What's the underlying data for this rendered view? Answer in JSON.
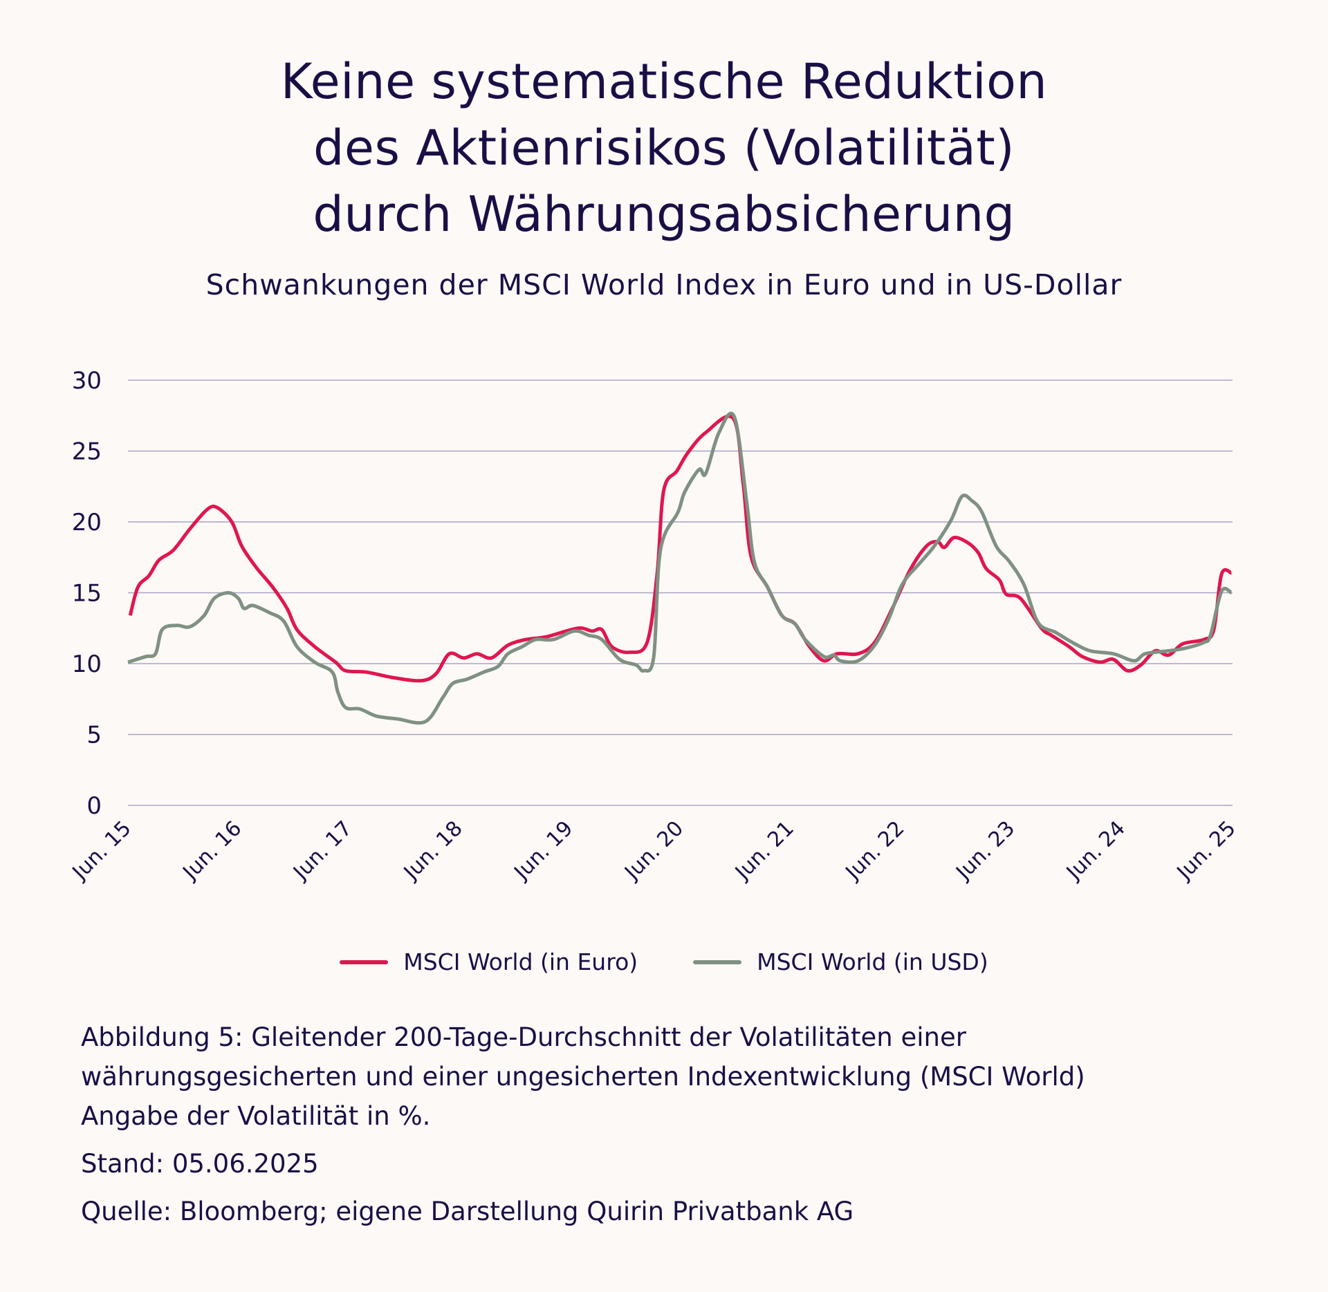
{
  "header": {
    "title_lines": [
      "Keine systematische Reduktion",
      "des Aktienrisikos (Volatilität)",
      "durch Währungsabsicherung"
    ],
    "subtitle": "Schwankungen der MSCI World Index in Euro und in US-Dollar"
  },
  "chart_data": {
    "type": "line",
    "title": "Schwankungen der MSCI World Index in Euro und in US-Dollar",
    "xlabel": "",
    "ylabel": "Volatilität in %",
    "x_unit": "years since Jun. 2015",
    "xlim": [
      0,
      10
    ],
    "ylim": [
      0,
      30
    ],
    "yticks": [
      0,
      5,
      10,
      15,
      20,
      25,
      30
    ],
    "ytick_labels": [
      "0",
      "5",
      "10",
      "15",
      "20",
      "25",
      "30"
    ],
    "xticks": [
      0,
      1,
      2,
      3,
      4,
      5,
      6,
      7,
      8,
      9,
      10
    ],
    "xtick_labels": [
      "Jun. 15",
      "Jun. 16",
      "Jun. 17",
      "Jun. 18",
      "Jun. 19",
      "Jun. 20",
      "Jun. 21",
      "Jun. 22",
      "Jun. 23",
      "Jun. 24",
      "Jun. 25"
    ],
    "grid": "horizontal",
    "legend_position": "bottom-center",
    "series": [
      {
        "name": "MSCI World (in Euro)",
        "color": "#e0164f",
        "points": [
          [
            0.02,
            13.4
          ],
          [
            0.09,
            15.4
          ],
          [
            0.19,
            16.2
          ],
          [
            0.28,
            17.3
          ],
          [
            0.41,
            18.0
          ],
          [
            0.56,
            19.5
          ],
          [
            0.72,
            20.9
          ],
          [
            0.81,
            21.0
          ],
          [
            0.94,
            20.0
          ],
          [
            1.03,
            18.3
          ],
          [
            1.16,
            16.8
          ],
          [
            1.31,
            15.4
          ],
          [
            1.44,
            13.9
          ],
          [
            1.53,
            12.4
          ],
          [
            1.69,
            11.2
          ],
          [
            1.88,
            10.1
          ],
          [
            1.97,
            9.5
          ],
          [
            2.16,
            9.4
          ],
          [
            2.41,
            9.0
          ],
          [
            2.66,
            8.8
          ],
          [
            2.79,
            9.3
          ],
          [
            2.91,
            10.7
          ],
          [
            3.04,
            10.4
          ],
          [
            3.16,
            10.7
          ],
          [
            3.29,
            10.4
          ],
          [
            3.44,
            11.3
          ],
          [
            3.6,
            11.7
          ],
          [
            3.79,
            11.9
          ],
          [
            4.07,
            12.5
          ],
          [
            4.2,
            12.3
          ],
          [
            4.29,
            12.4
          ],
          [
            4.38,
            11.2
          ],
          [
            4.54,
            10.8
          ],
          [
            4.7,
            11.5
          ],
          [
            4.79,
            16.3
          ],
          [
            4.85,
            22.2
          ],
          [
            4.97,
            23.6
          ],
          [
            5.07,
            24.9
          ],
          [
            5.23,
            26.3
          ],
          [
            5.48,
            27.3
          ],
          [
            5.57,
            22.7
          ],
          [
            5.64,
            17.6
          ],
          [
            5.79,
            15.4
          ],
          [
            5.92,
            13.4
          ],
          [
            6.04,
            12.8
          ],
          [
            6.17,
            11.2
          ],
          [
            6.3,
            10.2
          ],
          [
            6.42,
            10.7
          ],
          [
            6.61,
            10.7
          ],
          [
            6.76,
            11.5
          ],
          [
            6.92,
            13.9
          ],
          [
            7.08,
            16.6
          ],
          [
            7.23,
            18.3
          ],
          [
            7.33,
            18.6
          ],
          [
            7.39,
            18.2
          ],
          [
            7.48,
            18.9
          ],
          [
            7.61,
            18.5
          ],
          [
            7.7,
            17.8
          ],
          [
            7.77,
            16.7
          ],
          [
            7.89,
            15.9
          ],
          [
            7.95,
            14.9
          ],
          [
            8.08,
            14.6
          ],
          [
            8.27,
            12.5
          ],
          [
            8.36,
            12.0
          ],
          [
            8.52,
            11.2
          ],
          [
            8.64,
            10.5
          ],
          [
            8.8,
            10.1
          ],
          [
            8.92,
            10.3
          ],
          [
            9.05,
            9.5
          ],
          [
            9.17,
            9.9
          ],
          [
            9.3,
            10.9
          ],
          [
            9.42,
            10.6
          ],
          [
            9.55,
            11.4
          ],
          [
            9.74,
            11.7
          ],
          [
            9.83,
            12.4
          ],
          [
            9.9,
            16.3
          ],
          [
            9.99,
            16.4
          ]
        ]
      },
      {
        "name": "MSCI World (in USD)",
        "color": "#7f9182",
        "points": [
          [
            0.0,
            10.1
          ],
          [
            0.16,
            10.5
          ],
          [
            0.25,
            10.7
          ],
          [
            0.31,
            12.4
          ],
          [
            0.44,
            12.7
          ],
          [
            0.56,
            12.6
          ],
          [
            0.69,
            13.4
          ],
          [
            0.78,
            14.6
          ],
          [
            0.91,
            15.0
          ],
          [
            1.0,
            14.6
          ],
          [
            1.05,
            13.9
          ],
          [
            1.13,
            14.1
          ],
          [
            1.28,
            13.6
          ],
          [
            1.41,
            13.0
          ],
          [
            1.53,
            11.2
          ],
          [
            1.69,
            10.1
          ],
          [
            1.85,
            9.4
          ],
          [
            1.9,
            8.0
          ],
          [
            1.97,
            6.9
          ],
          [
            2.1,
            6.8
          ],
          [
            2.25,
            6.3
          ],
          [
            2.44,
            6.1
          ],
          [
            2.69,
            5.9
          ],
          [
            2.85,
            7.6
          ],
          [
            2.94,
            8.6
          ],
          [
            3.07,
            8.9
          ],
          [
            3.22,
            9.4
          ],
          [
            3.35,
            9.8
          ],
          [
            3.44,
            10.7
          ],
          [
            3.57,
            11.2
          ],
          [
            3.69,
            11.7
          ],
          [
            3.85,
            11.7
          ],
          [
            4.04,
            12.3
          ],
          [
            4.17,
            12.0
          ],
          [
            4.29,
            11.7
          ],
          [
            4.45,
            10.3
          ],
          [
            4.6,
            9.9
          ],
          [
            4.67,
            9.5
          ],
          [
            4.76,
            10.5
          ],
          [
            4.82,
            18.0
          ],
          [
            4.98,
            20.7
          ],
          [
            5.04,
            22.1
          ],
          [
            5.17,
            23.7
          ],
          [
            5.23,
            23.4
          ],
          [
            5.35,
            26.3
          ],
          [
            5.49,
            27.4
          ],
          [
            5.6,
            21.5
          ],
          [
            5.67,
            17.2
          ],
          [
            5.79,
            15.4
          ],
          [
            5.92,
            13.4
          ],
          [
            6.04,
            12.8
          ],
          [
            6.13,
            11.7
          ],
          [
            6.3,
            10.5
          ],
          [
            6.39,
            10.6
          ],
          [
            6.45,
            10.2
          ],
          [
            6.61,
            10.2
          ],
          [
            6.76,
            11.3
          ],
          [
            6.89,
            13.2
          ],
          [
            7.01,
            15.6
          ],
          [
            7.17,
            17.1
          ],
          [
            7.3,
            18.3
          ],
          [
            7.45,
            20.1
          ],
          [
            7.55,
            21.8
          ],
          [
            7.64,
            21.5
          ],
          [
            7.73,
            20.7
          ],
          [
            7.86,
            18.3
          ],
          [
            7.98,
            17.2
          ],
          [
            8.11,
            15.6
          ],
          [
            8.24,
            12.9
          ],
          [
            8.4,
            12.2
          ],
          [
            8.55,
            11.5
          ],
          [
            8.71,
            10.9
          ],
          [
            8.92,
            10.7
          ],
          [
            9.11,
            10.2
          ],
          [
            9.21,
            10.7
          ],
          [
            9.42,
            10.9
          ],
          [
            9.58,
            11.1
          ],
          [
            9.74,
            11.5
          ],
          [
            9.8,
            12.0
          ],
          [
            9.9,
            15.1
          ],
          [
            9.99,
            15.0
          ]
        ]
      }
    ]
  },
  "legend": {
    "items": [
      {
        "label": "MSCI World (in Euro)",
        "color": "#e0164f"
      },
      {
        "label": "MSCI World (in USD)",
        "color": "#7f9182"
      }
    ]
  },
  "caption": {
    "lines": [
      "Abbildung 5: Gleitender 200-Tage-Durchschnitt der Volatilitäten einer",
      "währungsgesicherten und einer ungesicherten Indexentwicklung (MSCI World)",
      "Angabe der Volatilität in %."
    ],
    "date": "Stand: 05.06.2025",
    "source": "Quelle: Bloomberg; eigene Darstellung Quirin Privatbank AG"
  }
}
